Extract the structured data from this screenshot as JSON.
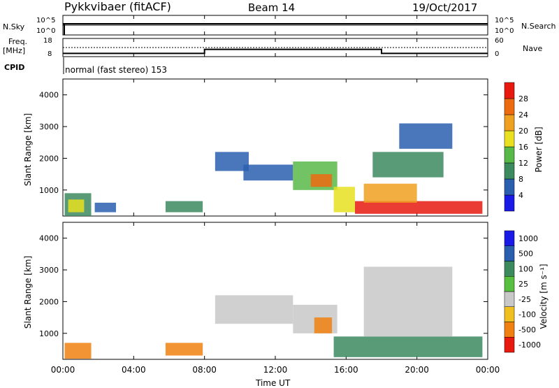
{
  "header": {
    "station": "Pykkvibaer (fitACF)",
    "beam": "Beam 14",
    "date": "19/Oct/2017"
  },
  "noise_panel": {
    "left_label": "N.Sky",
    "right_label": "N.Search",
    "left_ticks": [
      "10^5",
      "10^0"
    ],
    "right_ticks": [
      "10^5",
      "10^0"
    ]
  },
  "freq_panel": {
    "left_label_1": "Freq.",
    "left_label_2": "[MHz]",
    "right_label": "Nave",
    "left_ticks": [
      "18",
      "8"
    ],
    "right_ticks": [
      "60",
      "0"
    ]
  },
  "cpid": {
    "label": "CPID",
    "value": "normal (fast stereo) 153"
  },
  "time_axis": {
    "title": "Time UT",
    "ticks": [
      "00:00",
      "04:00",
      "08:00",
      "12:00",
      "16:00",
      "20:00",
      "00:00"
    ]
  },
  "range_axis": {
    "title": "Slant Range [km]",
    "ticks": [
      "1000",
      "2000",
      "3000",
      "4000"
    ]
  },
  "power_scale": {
    "title": "Power [dB]",
    "ticks": [
      "4",
      "8",
      "12",
      "16",
      "20",
      "24",
      "28"
    ],
    "colors": [
      "#1a1ae6",
      "#2a5fb0",
      "#3c8a5e",
      "#58b848",
      "#e8e020",
      "#f0a020",
      "#ee6a10",
      "#e81a10"
    ]
  },
  "velocity_scale": {
    "title": "Velocity [m s⁻¹]",
    "ticks": [
      "1000",
      "500",
      "100",
      "25",
      "-25",
      "-100",
      "-500",
      "-1000"
    ],
    "colors": [
      "#1a1ae6",
      "#2a5fb0",
      "#3c8a5e",
      "#58c040",
      "#c8c8c8",
      "#f0c020",
      "#f08010",
      "#e81a10"
    ]
  },
  "chart_data": {
    "type": "heatmap",
    "x_range_hours": [
      0,
      24
    ],
    "y_range_km": [
      180,
      4500
    ],
    "frequency_mhz": [
      {
        "from_h": 0,
        "to_h": 8,
        "value": 9.8
      },
      {
        "from_h": 8,
        "to_h": 18,
        "value": 12.0
      },
      {
        "from_h": 18,
        "to_h": 24,
        "value": 9.8
      }
    ],
    "power_regions": [
      {
        "t0": 0.1,
        "t1": 1.6,
        "r0": 180,
        "r1": 900,
        "level": 2
      },
      {
        "t0": 0.3,
        "t1": 1.2,
        "r0": 300,
        "r1": 700,
        "level": 4
      },
      {
        "t0": 1.8,
        "t1": 3.0,
        "r0": 300,
        "r1": 600,
        "level": 1
      },
      {
        "t0": 5.8,
        "t1": 7.9,
        "r0": 300,
        "r1": 650,
        "level": 2
      },
      {
        "t0": 8.6,
        "t1": 10.5,
        "r0": 1600,
        "r1": 2200,
        "level": 1
      },
      {
        "t0": 10.2,
        "t1": 13.0,
        "r0": 1300,
        "r1": 1800,
        "level": 1
      },
      {
        "t0": 13.0,
        "t1": 15.5,
        "r0": 1000,
        "r1": 1900,
        "level": 3
      },
      {
        "t0": 14.0,
        "t1": 15.2,
        "r0": 1100,
        "r1": 1500,
        "level": 6
      },
      {
        "t0": 15.3,
        "t1": 16.5,
        "r0": 300,
        "r1": 1100,
        "level": 4
      },
      {
        "t0": 16.5,
        "t1": 23.7,
        "r0": 250,
        "r1": 650,
        "level": 7
      },
      {
        "t0": 17.0,
        "t1": 20.0,
        "r0": 600,
        "r1": 1200,
        "level": 5
      },
      {
        "t0": 17.5,
        "t1": 21.5,
        "r0": 1400,
        "r1": 2200,
        "level": 2
      },
      {
        "t0": 19.0,
        "t1": 22.0,
        "r0": 2300,
        "r1": 3100,
        "level": 1
      }
    ],
    "velocity_regions": [
      {
        "t0": 0.1,
        "t1": 1.6,
        "r0": 200,
        "r1": 700,
        "level": 6
      },
      {
        "t0": 5.8,
        "t1": 7.9,
        "r0": 300,
        "r1": 700,
        "level": 6
      },
      {
        "t0": 8.6,
        "t1": 13.0,
        "r0": 1300,
        "r1": 2200,
        "level": 4
      },
      {
        "t0": 13.0,
        "t1": 15.5,
        "r0": 1000,
        "r1": 1900,
        "level": 4
      },
      {
        "t0": 14.2,
        "t1": 15.2,
        "r0": 1000,
        "r1": 1500,
        "level": 6
      },
      {
        "t0": 15.3,
        "t1": 23.7,
        "r0": 250,
        "r1": 900,
        "level": 2
      },
      {
        "t0": 17.0,
        "t1": 22.0,
        "r0": 900,
        "r1": 3100,
        "level": 4
      }
    ]
  }
}
